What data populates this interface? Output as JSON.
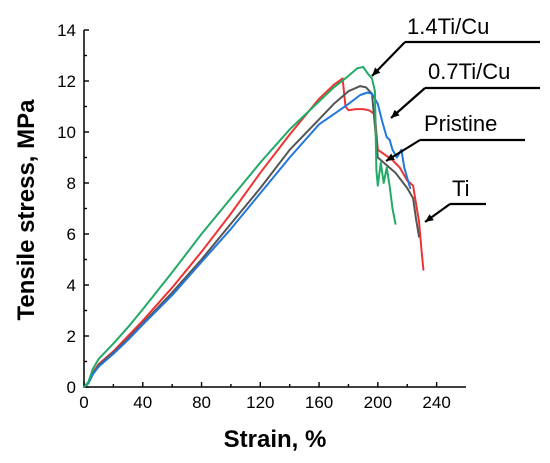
{
  "chart_data": {
    "type": "line",
    "xlabel": "Strain, %",
    "ylabel": "Tensile stress, MPa",
    "xlim": [
      0,
      260
    ],
    "ylim": [
      0,
      14
    ],
    "x_ticks": [
      0,
      40,
      80,
      120,
      160,
      200,
      240
    ],
    "y_ticks": [
      0,
      2,
      4,
      6,
      8,
      10,
      12,
      14
    ],
    "grid": false,
    "series": [
      {
        "name": "Ti",
        "color": "#ee3333",
        "x": [
          0,
          3,
          6,
          10,
          15,
          20,
          30,
          40,
          60,
          80,
          100,
          120,
          140,
          160,
          170,
          176,
          178,
          180,
          185,
          190,
          194,
          198,
          200,
          205,
          210,
          215,
          220,
          224,
          226,
          228,
          230,
          231
        ],
        "y": [
          0,
          0.15,
          0.55,
          0.9,
          1.15,
          1.4,
          2.0,
          2.6,
          3.9,
          5.3,
          6.8,
          8.4,
          9.9,
          11.3,
          11.85,
          12.1,
          11.0,
          10.85,
          10.9,
          10.9,
          10.85,
          10.7,
          9.3,
          9.1,
          8.9,
          8.6,
          8.1,
          7.9,
          7.2,
          6.5,
          5.2,
          4.6
        ]
      },
      {
        "name": "Pristine",
        "color": "#555555",
        "x": [
          0,
          3,
          6,
          10,
          15,
          20,
          30,
          40,
          60,
          80,
          100,
          120,
          140,
          160,
          170,
          180,
          188,
          192,
          196,
          200,
          204,
          208,
          212,
          216,
          220,
          224,
          226,
          228
        ],
        "y": [
          0,
          0.15,
          0.5,
          0.85,
          1.1,
          1.35,
          1.9,
          2.5,
          3.7,
          5.0,
          6.4,
          7.8,
          9.3,
          10.5,
          11.1,
          11.6,
          11.8,
          11.75,
          11.5,
          9.0,
          8.8,
          8.6,
          8.4,
          8.1,
          7.8,
          7.4,
          6.6,
          5.9
        ]
      },
      {
        "name": "0.7Ti/Cu",
        "color": "#2277dd",
        "x": [
          0,
          3,
          6,
          10,
          15,
          20,
          30,
          40,
          60,
          80,
          100,
          120,
          140,
          160,
          170,
          180,
          188,
          193,
          196,
          200,
          203,
          206,
          208,
          210,
          213,
          216,
          218,
          220,
          222
        ],
        "y": [
          0,
          0.15,
          0.5,
          0.8,
          1.05,
          1.3,
          1.85,
          2.45,
          3.6,
          4.9,
          6.2,
          7.6,
          9.0,
          10.3,
          10.7,
          11.1,
          11.45,
          11.55,
          11.5,
          11.1,
          10.4,
          9.8,
          9.7,
          9.3,
          9.0,
          9.3,
          8.6,
          8.2,
          7.8
        ]
      },
      {
        "name": "1.4Ti/Cu",
        "color": "#22aa66",
        "x": [
          0,
          3,
          6,
          10,
          15,
          20,
          30,
          40,
          60,
          80,
          100,
          120,
          140,
          160,
          170,
          180,
          186,
          190,
          193,
          196,
          198,
          199,
          200,
          202,
          204,
          206,
          208,
          210,
          212
        ],
        "y": [
          0,
          0.2,
          0.7,
          1.1,
          1.4,
          1.7,
          2.35,
          3.05,
          4.5,
          6.0,
          7.4,
          8.8,
          10.1,
          11.2,
          11.75,
          12.2,
          12.5,
          12.55,
          12.3,
          12.1,
          11.6,
          8.5,
          7.9,
          8.8,
          8.0,
          8.6,
          7.9,
          7.0,
          6.4
        ]
      }
    ],
    "annotations": [
      {
        "text": "1.4Ti/Cu",
        "points_to": "1.4Ti/Cu"
      },
      {
        "text": "0.7Ti/Cu",
        "points_to": "0.7Ti/Cu"
      },
      {
        "text": "Pristine",
        "points_to": "Pristine"
      },
      {
        "text": "Ti",
        "points_to": "Ti"
      }
    ]
  }
}
